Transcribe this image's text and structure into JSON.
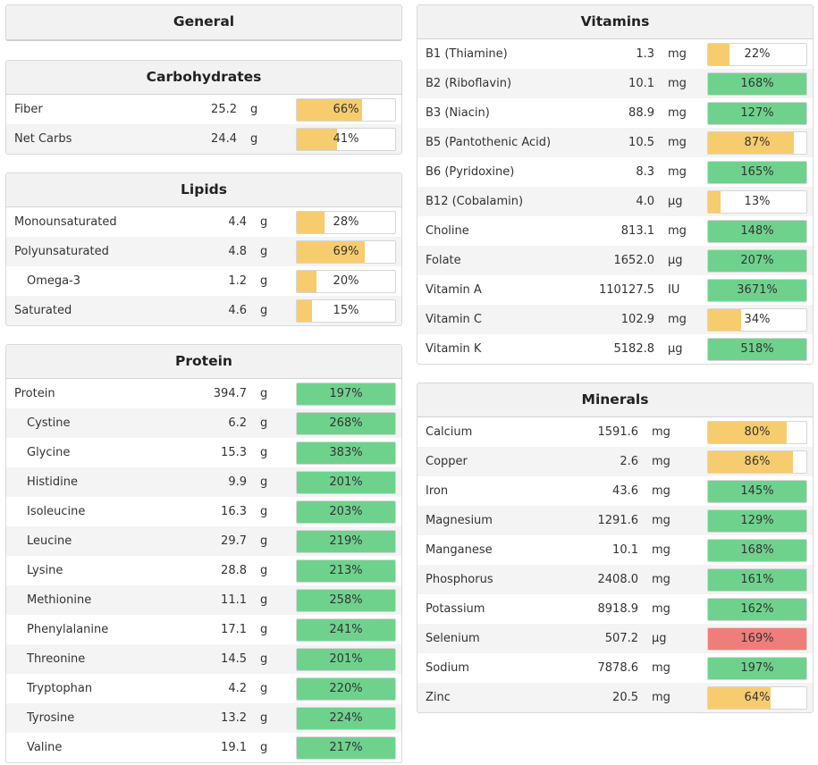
{
  "colors": {
    "yellow": "#f7cc6e",
    "green": "#6ed28d",
    "red": "#ef7e7a"
  },
  "general": {
    "title": "General"
  },
  "carbohydrates": {
    "title": "Carbohydrates",
    "rows": [
      {
        "name": "Fiber",
        "amount": "25.2",
        "unit": "g",
        "pct": "66%",
        "fill": 66,
        "color": "yellow"
      },
      {
        "name": "Net Carbs",
        "amount": "24.4",
        "unit": "g",
        "pct": "41%",
        "fill": 41,
        "color": "yellow"
      }
    ]
  },
  "lipids": {
    "title": "Lipids",
    "rows": [
      {
        "name": "Monounsaturated",
        "amount": "4.4",
        "unit": "g",
        "pct": "28%",
        "fill": 28,
        "color": "yellow"
      },
      {
        "name": "Polyunsaturated",
        "amount": "4.8",
        "unit": "g",
        "pct": "69%",
        "fill": 69,
        "color": "yellow"
      },
      {
        "name": "Omega-3",
        "amount": "1.2",
        "unit": "g",
        "pct": "20%",
        "fill": 20,
        "color": "yellow",
        "indent": true
      },
      {
        "name": "Saturated",
        "amount": "4.6",
        "unit": "g",
        "pct": "15%",
        "fill": 15,
        "color": "yellow"
      }
    ]
  },
  "protein": {
    "title": "Protein",
    "rows": [
      {
        "name": "Protein",
        "amount": "394.7",
        "unit": "g",
        "pct": "197%",
        "fill": 100,
        "color": "green"
      },
      {
        "name": "Cystine",
        "amount": "6.2",
        "unit": "g",
        "pct": "268%",
        "fill": 100,
        "color": "green",
        "indent": true
      },
      {
        "name": "Glycine",
        "amount": "15.3",
        "unit": "g",
        "pct": "383%",
        "fill": 100,
        "color": "green",
        "indent": true
      },
      {
        "name": "Histidine",
        "amount": "9.9",
        "unit": "g",
        "pct": "201%",
        "fill": 100,
        "color": "green",
        "indent": true
      },
      {
        "name": "Isoleucine",
        "amount": "16.3",
        "unit": "g",
        "pct": "203%",
        "fill": 100,
        "color": "green",
        "indent": true
      },
      {
        "name": "Leucine",
        "amount": "29.7",
        "unit": "g",
        "pct": "219%",
        "fill": 100,
        "color": "green",
        "indent": true
      },
      {
        "name": "Lysine",
        "amount": "28.8",
        "unit": "g",
        "pct": "213%",
        "fill": 100,
        "color": "green",
        "indent": true
      },
      {
        "name": "Methionine",
        "amount": "11.1",
        "unit": "g",
        "pct": "258%",
        "fill": 100,
        "color": "green",
        "indent": true
      },
      {
        "name": "Phenylalanine",
        "amount": "17.1",
        "unit": "g",
        "pct": "241%",
        "fill": 100,
        "color": "green",
        "indent": true
      },
      {
        "name": "Threonine",
        "amount": "14.5",
        "unit": "g",
        "pct": "201%",
        "fill": 100,
        "color": "green",
        "indent": true
      },
      {
        "name": "Tryptophan",
        "amount": "4.2",
        "unit": "g",
        "pct": "220%",
        "fill": 100,
        "color": "green",
        "indent": true
      },
      {
        "name": "Tyrosine",
        "amount": "13.2",
        "unit": "g",
        "pct": "224%",
        "fill": 100,
        "color": "green",
        "indent": true
      },
      {
        "name": "Valine",
        "amount": "19.1",
        "unit": "g",
        "pct": "217%",
        "fill": 100,
        "color": "green",
        "indent": true
      }
    ]
  },
  "vitamins": {
    "title": "Vitamins",
    "rows": [
      {
        "name": "B1 (Thiamine)",
        "amount": "1.3",
        "unit": "mg",
        "pct": "22%",
        "fill": 22,
        "color": "yellow"
      },
      {
        "name": "B2 (Riboflavin)",
        "amount": "10.1",
        "unit": "mg",
        "pct": "168%",
        "fill": 100,
        "color": "green"
      },
      {
        "name": "B3 (Niacin)",
        "amount": "88.9",
        "unit": "mg",
        "pct": "127%",
        "fill": 100,
        "color": "green"
      },
      {
        "name": "B5 (Pantothenic Acid)",
        "amount": "10.5",
        "unit": "mg",
        "pct": "87%",
        "fill": 87,
        "color": "yellow"
      },
      {
        "name": "B6 (Pyridoxine)",
        "amount": "8.3",
        "unit": "mg",
        "pct": "165%",
        "fill": 100,
        "color": "green"
      },
      {
        "name": "B12 (Cobalamin)",
        "amount": "4.0",
        "unit": "µg",
        "pct": "13%",
        "fill": 13,
        "color": "yellow"
      },
      {
        "name": "Choline",
        "amount": "813.1",
        "unit": "mg",
        "pct": "148%",
        "fill": 100,
        "color": "green"
      },
      {
        "name": "Folate",
        "amount": "1652.0",
        "unit": "µg",
        "pct": "207%",
        "fill": 100,
        "color": "green"
      },
      {
        "name": "Vitamin A",
        "amount": "110127.5",
        "unit": "IU",
        "pct": "3671%",
        "fill": 100,
        "color": "green"
      },
      {
        "name": "Vitamin C",
        "amount": "102.9",
        "unit": "mg",
        "pct": "34%",
        "fill": 34,
        "color": "yellow"
      },
      {
        "name": "Vitamin K",
        "amount": "5182.8",
        "unit": "µg",
        "pct": "518%",
        "fill": 100,
        "color": "green"
      }
    ]
  },
  "minerals": {
    "title": "Minerals",
    "rows": [
      {
        "name": "Calcium",
        "amount": "1591.6",
        "unit": "mg",
        "pct": "80%",
        "fill": 80,
        "color": "yellow"
      },
      {
        "name": "Copper",
        "amount": "2.6",
        "unit": "mg",
        "pct": "86%",
        "fill": 86,
        "color": "yellow"
      },
      {
        "name": "Iron",
        "amount": "43.6",
        "unit": "mg",
        "pct": "145%",
        "fill": 100,
        "color": "green"
      },
      {
        "name": "Magnesium",
        "amount": "1291.6",
        "unit": "mg",
        "pct": "129%",
        "fill": 100,
        "color": "green"
      },
      {
        "name": "Manganese",
        "amount": "10.1",
        "unit": "mg",
        "pct": "168%",
        "fill": 100,
        "color": "green"
      },
      {
        "name": "Phosphorus",
        "amount": "2408.0",
        "unit": "mg",
        "pct": "161%",
        "fill": 100,
        "color": "green"
      },
      {
        "name": "Potassium",
        "amount": "8918.9",
        "unit": "mg",
        "pct": "162%",
        "fill": 100,
        "color": "green"
      },
      {
        "name": "Selenium",
        "amount": "507.2",
        "unit": "µg",
        "pct": "169%",
        "fill": 100,
        "color": "red"
      },
      {
        "name": "Sodium",
        "amount": "7878.6",
        "unit": "mg",
        "pct": "197%",
        "fill": 100,
        "color": "green"
      },
      {
        "name": "Zinc",
        "amount": "20.5",
        "unit": "mg",
        "pct": "64%",
        "fill": 64,
        "color": "yellow"
      }
    ]
  }
}
